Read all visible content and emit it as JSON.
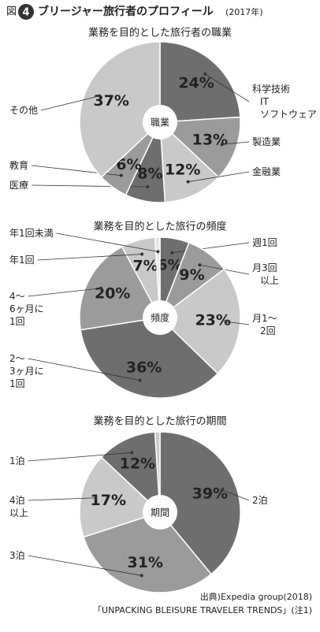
{
  "header": {
    "fig": "図",
    "number": "4",
    "title": "ブリージャー旅行者のプロフィール",
    "year": "(2017年)"
  },
  "chart_data": [
    {
      "type": "pie",
      "title": "業務を目的とした旅行者の職業",
      "center_label": "職業",
      "categories": [
        "科学技術\nIT\nソフトウェア",
        "製造業",
        "金融業",
        "医療",
        "教育",
        "その他"
      ],
      "values": [
        24,
        13,
        12,
        8,
        6,
        37
      ],
      "value_labels": [
        "24%",
        "13%",
        "12%",
        "8%",
        "6%",
        "37%"
      ],
      "colors": [
        "#6e6e6e",
        "#9b9b9b",
        "#c9c9c9",
        "#6e6e6e",
        "#9b9b9b",
        "#c9c9c9"
      ]
    },
    {
      "type": "pie",
      "title": "業務を目的とした旅行の頻度",
      "center_label": "頻度",
      "categories": [
        "週1回",
        "月3回\n以上",
        "月1〜\n2回",
        "2〜\n3ヶ月に\n1回",
        "4〜\n6ヶ月に\n1回",
        "年1回",
        "年1回未満"
      ],
      "values": [
        6,
        9,
        23,
        36,
        20,
        7,
        1
      ],
      "value_labels": [
        "6%",
        "9%",
        "23%",
        "36%",
        "20%",
        "7%",
        null
      ],
      "colors": [
        "#6e6e6e",
        "#9b9b9b",
        "#c9c9c9",
        "#6e6e6e",
        "#9b9b9b",
        "#c9c9c9",
        "#e6e6e6"
      ]
    },
    {
      "type": "pie",
      "title": "業務を目的とした旅行の期間",
      "center_label": "期間",
      "categories": [
        "2泊",
        "3泊",
        "4泊\n以上",
        "1泊",
        null
      ],
      "values": [
        39,
        31,
        17,
        12,
        1
      ],
      "value_labels": [
        "39%",
        "31%",
        "17%",
        "12%",
        null
      ],
      "colors": [
        "#6e6e6e",
        "#9b9b9b",
        "#c9c9c9",
        "#6e6e6e",
        "#c9c9c9"
      ]
    }
  ],
  "source": {
    "line1": "出典)Expedia group(2018)",
    "line2": "「UNPACKING BLEISURE TRAVELER TRENDS」(注1)"
  }
}
